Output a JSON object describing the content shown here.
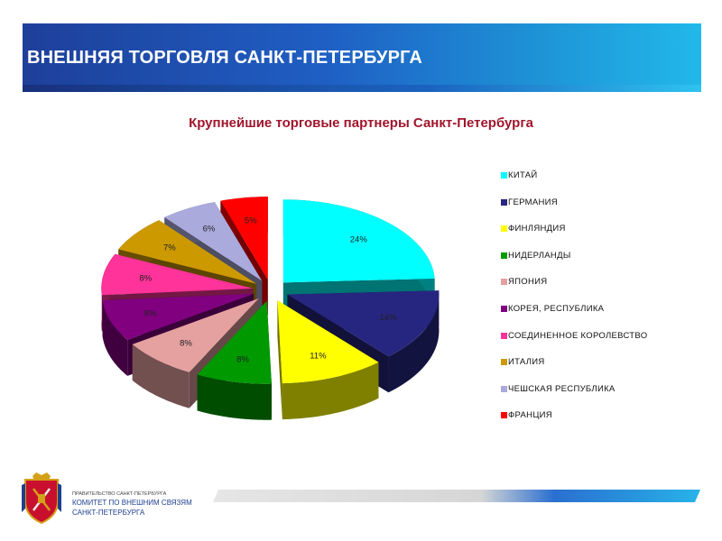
{
  "header": {
    "title": "ВНЕШНЯЯ ТОРГОВЛЯ САНКТ-ПЕТЕРБУРГА"
  },
  "chart_data": {
    "type": "pie",
    "title": "Крупнейшие торговые партнеры Санкт-Петербурга",
    "legend_position": "right",
    "slices": [
      {
        "name": "КИТАЙ",
        "value": 24,
        "label": "24%",
        "color": "#00ffff"
      },
      {
        "name": "ГЕРМАНИЯ",
        "value": 14,
        "label": "14%",
        "color": "#262680"
      },
      {
        "name": "ФИНЛЯНДИЯ",
        "value": 11,
        "label": "11%",
        "color": "#ffff00"
      },
      {
        "name": "НИДЕРЛАНДЫ",
        "value": 8,
        "label": "8%",
        "color": "#009900"
      },
      {
        "name": "ЯПОНИЯ",
        "value": 8,
        "label": "8%",
        "color": "#e5a0a0"
      },
      {
        "name": "КОРЕЯ, РЕСПУБЛИКА",
        "value": 8,
        "label": "8%",
        "color": "#800080"
      },
      {
        "name": "СОЕДИНЕННОЕ КОРОЛЕВСТВО",
        "value": 8,
        "label": "8%",
        "color": "#ff3399"
      },
      {
        "name": "ИТАЛИЯ",
        "value": 7,
        "label": "7%",
        "color": "#cc9900"
      },
      {
        "name": "ЧЕШСКАЯ РЕСПУБЛИКА",
        "value": 6,
        "label": "6%",
        "color": "#aaaadd"
      },
      {
        "name": "ФРАНЦИЯ",
        "value": 5,
        "label": "5%",
        "color": "#ff0000"
      }
    ]
  },
  "footer": {
    "org_small": "ПРАВИТЕЛЬСТВО САНКТ-ПЕТЕРБУРГА",
    "org_line1": "КОМИТЕТ ПО ВНЕШНИМ СВЯЗЯМ",
    "org_line2": "САНКТ-ПЕТЕРБУРГА",
    "logo_icon": "coat-of-arms-icon"
  }
}
